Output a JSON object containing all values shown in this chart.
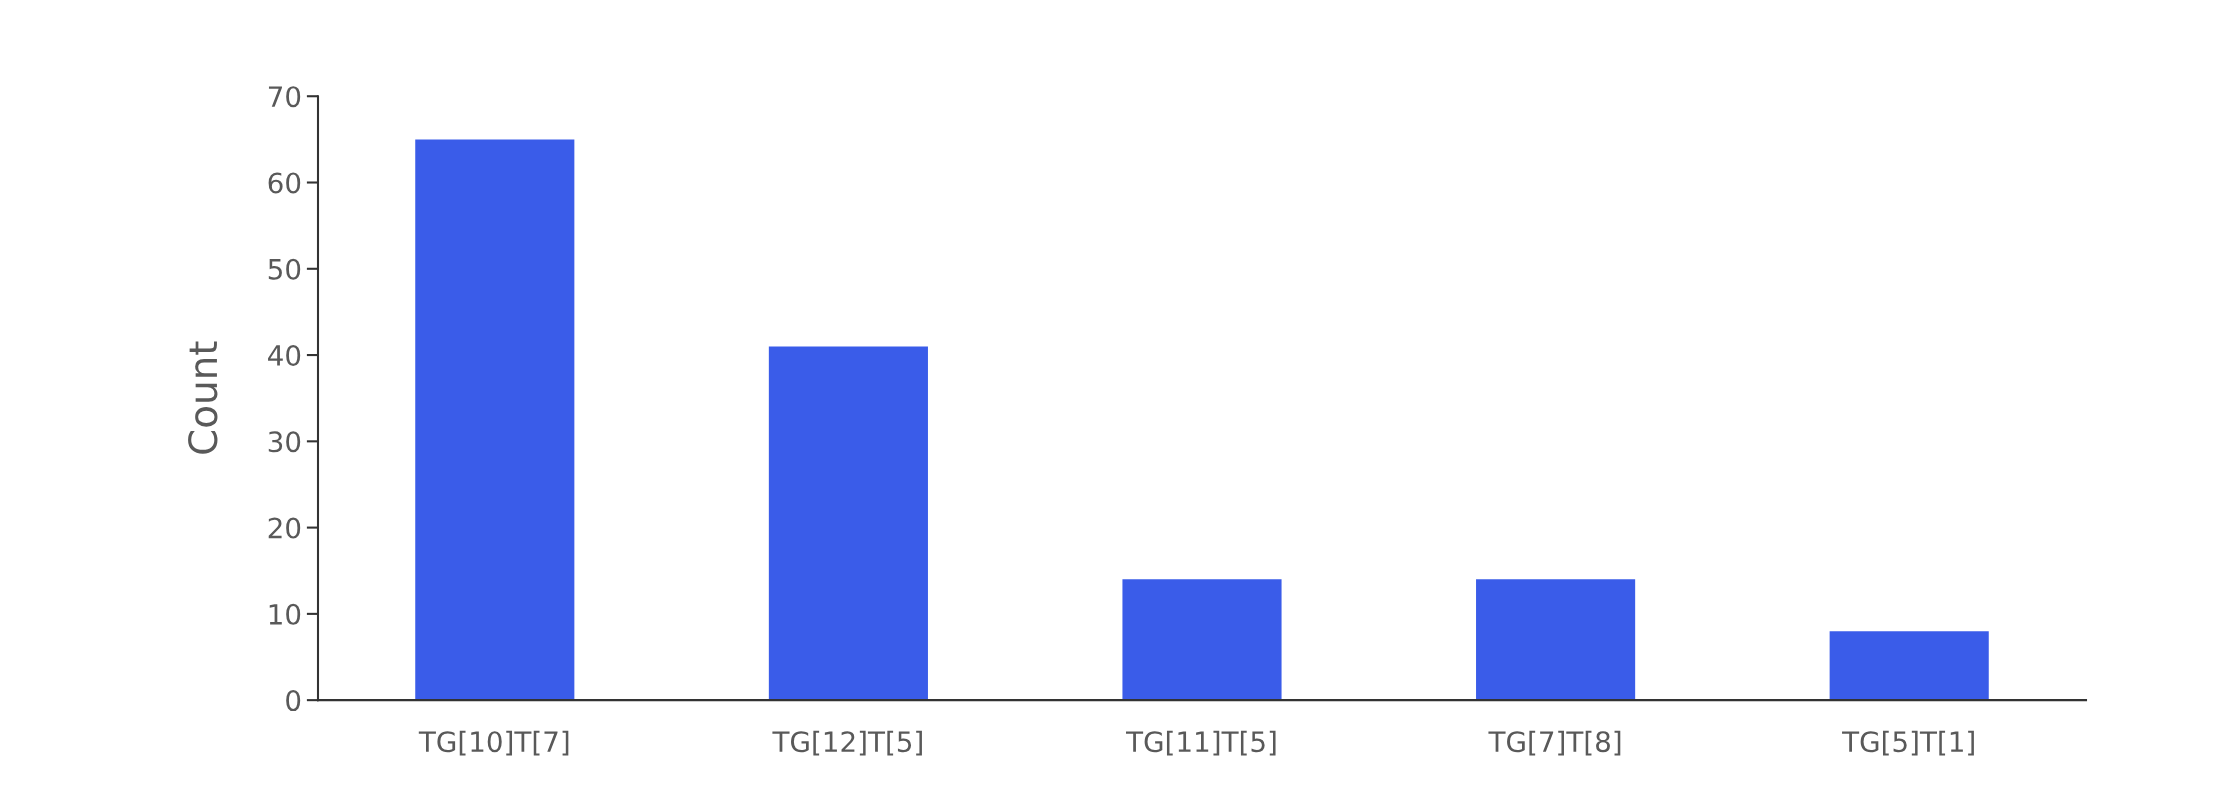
{
  "chart_data": {
    "type": "bar",
    "ylabel": "Count",
    "categories": [
      "TG[10]T[7]",
      "TG[12]T[5]",
      "TG[11]T[5]",
      "TG[7]T[8]",
      "TG[5]T[1]"
    ],
    "values": [
      65,
      41,
      14,
      14,
      8
    ],
    "color": "#3a5ce9",
    "ylim": [
      0,
      70
    ],
    "yticks": [
      0,
      10,
      20,
      30,
      40,
      50,
      60,
      70
    ],
    "grid": false
  }
}
